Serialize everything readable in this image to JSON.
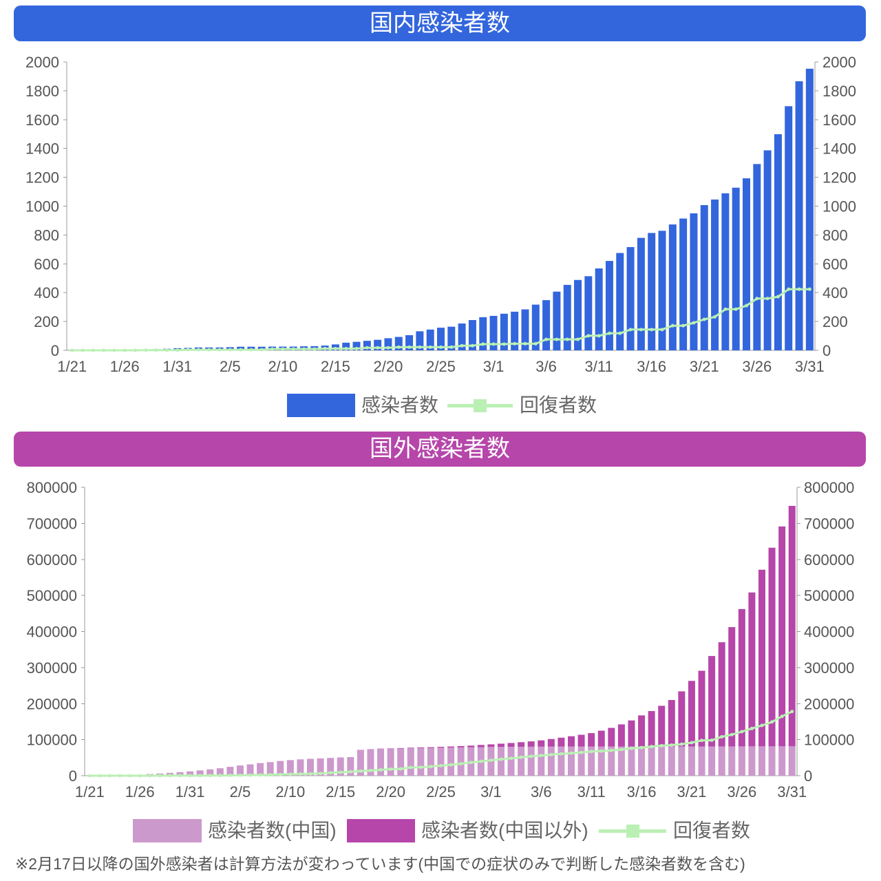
{
  "note": "※2月17日以降の国外感染者は計算方法が変わっています(中国での症状のみで判断した感染者数を含む)",
  "chart_data": [
    {
      "type": "bar",
      "title": "国内感染者数",
      "header_color": "#3366dd",
      "categories": [
        "1/21",
        "1/22",
        "1/23",
        "1/24",
        "1/25",
        "1/26",
        "1/27",
        "1/28",
        "1/29",
        "1/30",
        "1/31",
        "2/1",
        "2/2",
        "2/3",
        "2/4",
        "2/5",
        "2/6",
        "2/7",
        "2/8",
        "2/9",
        "2/10",
        "2/11",
        "2/12",
        "2/13",
        "2/14",
        "2/15",
        "2/16",
        "2/17",
        "2/18",
        "2/19",
        "2/20",
        "2/21",
        "2/22",
        "2/23",
        "2/24",
        "2/25",
        "2/26",
        "2/27",
        "2/28",
        "2/29",
        "3/1",
        "3/2",
        "3/3",
        "3/4",
        "3/5",
        "3/6",
        "3/7",
        "3/8",
        "3/9",
        "3/10",
        "3/11",
        "3/12",
        "3/13",
        "3/14",
        "3/15",
        "3/16",
        "3/17",
        "3/18",
        "3/19",
        "3/20",
        "3/21",
        "3/22",
        "3/23",
        "3/24",
        "3/25",
        "3/26",
        "3/27",
        "3/28",
        "3/29",
        "3/30",
        "3/31"
      ],
      "ylim": [
        0,
        2000
      ],
      "y_ticks": [
        0,
        200,
        400,
        600,
        800,
        1000,
        1200,
        1400,
        1600,
        1800,
        2000
      ],
      "mirrored_right_axis": true,
      "grid": false,
      "legend_position": "bottom",
      "series": [
        {
          "name": "感染者数",
          "type": "bar",
          "color": "#3366dd",
          "values": [
            1,
            1,
            1,
            2,
            3,
            4,
            4,
            7,
            8,
            11,
            15,
            17,
            20,
            20,
            20,
            22,
            25,
            25,
            25,
            26,
            26,
            26,
            28,
            29,
            33,
            41,
            53,
            59,
            66,
            73,
            84,
            93,
            105,
            132,
            144,
            157,
            164,
            186,
            210,
            230,
            239,
            254,
            268,
            284,
            317,
            348,
            407,
            454,
            488,
            514,
            568,
            620,
            675,
            716,
            780,
            814,
            829,
            873,
            914,
            950,
            1007,
            1046,
            1089,
            1128,
            1193,
            1292,
            1387,
            1499,
            1693,
            1866,
            1953
          ]
        },
        {
          "name": "回復者数",
          "type": "line",
          "color": "#bbf0b4",
          "values": [
            0,
            0,
            0,
            0,
            0,
            0,
            0,
            1,
            1,
            1,
            1,
            4,
            4,
            4,
            4,
            4,
            4,
            4,
            4,
            9,
            9,
            9,
            9,
            9,
            12,
            12,
            12,
            12,
            18,
            18,
            18,
            22,
            22,
            22,
            22,
            22,
            22,
            32,
            32,
            43,
            43,
            43,
            46,
            46,
            46,
            76,
            76,
            76,
            76,
            101,
            101,
            118,
            118,
            144,
            144,
            144,
            144,
            171,
            171,
            191,
            215,
            232,
            285,
            285,
            310,
            359,
            359,
            372,
            424,
            424,
            424
          ]
        }
      ]
    },
    {
      "type": "bar",
      "title": "国外感染者数",
      "header_color": "#b646aa",
      "categories": [
        "1/21",
        "1/22",
        "1/23",
        "1/24",
        "1/25",
        "1/26",
        "1/27",
        "1/28",
        "1/29",
        "1/30",
        "1/31",
        "2/1",
        "2/2",
        "2/3",
        "2/4",
        "2/5",
        "2/6",
        "2/7",
        "2/8",
        "2/9",
        "2/10",
        "2/11",
        "2/12",
        "2/13",
        "2/14",
        "2/15",
        "2/16",
        "2/17",
        "2/18",
        "2/19",
        "2/20",
        "2/21",
        "2/22",
        "2/23",
        "2/24",
        "2/25",
        "2/26",
        "2/27",
        "2/28",
        "2/29",
        "3/1",
        "3/2",
        "3/3",
        "3/4",
        "3/5",
        "3/6",
        "3/7",
        "3/8",
        "3/9",
        "3/10",
        "3/11",
        "3/12",
        "3/13",
        "3/14",
        "3/15",
        "3/16",
        "3/17",
        "3/18",
        "3/19",
        "3/20",
        "3/21",
        "3/22",
        "3/23",
        "3/24",
        "3/25",
        "3/26",
        "3/27",
        "3/28",
        "3/29",
        "3/30",
        "3/31"
      ],
      "ylim": [
        0,
        800000
      ],
      "y_ticks": [
        0,
        100000,
        200000,
        300000,
        400000,
        500000,
        600000,
        700000,
        800000
      ],
      "mirrored_right_axis": true,
      "grid": false,
      "legend_position": "bottom",
      "series": [
        {
          "name": "感染者数(中国)",
          "type": "bar",
          "stacked": true,
          "color": "#cc99cc",
          "values": [
            440,
            571,
            830,
            1287,
            1975,
            2744,
            4515,
            5974,
            7711,
            9692,
            11791,
            14380,
            17205,
            20438,
            24324,
            28018,
            31161,
            34546,
            37198,
            40171,
            42638,
            44653,
            46000,
            47300,
            48500,
            49600,
            50500,
            70548,
            72436,
            74185,
            74576,
            75465,
            76288,
            76936,
            77150,
            77658,
            78064,
            78497,
            78824,
            79251,
            79824,
            80026,
            80151,
            80270,
            80409,
            80552,
            80651,
            80695,
            80735,
            80754,
            80778,
            80793,
            80813,
            80824,
            80844,
            80860,
            80881,
            80894,
            80928,
            80967,
            81008,
            81054,
            81093,
            81171,
            81218,
            81285,
            81340,
            81394,
            81439,
            81470,
            81518
          ]
        },
        {
          "name": "感染者数(中国以外)",
          "type": "bar",
          "stacked": true,
          "color": "#b646aa",
          "values": [
            4,
            7,
            14,
            25,
            40,
            57,
            64,
            87,
            105,
            118,
            153,
            173,
            183,
            188,
            212,
            227,
            265,
            317,
            343,
            361,
            457,
            476,
            523,
            538,
            547,
            639,
            691,
            749,
            822,
            895,
            1076,
            1200,
            1402,
            1769,
            2069,
            2459,
            2918,
            3664,
            4691,
            6009,
            7169,
            8774,
            10566,
            12668,
            14768,
            17481,
            21110,
            24747,
            28674,
            32778,
            37371,
            44067,
            51767,
            61518,
            72469,
            86434,
            98400,
            113000,
            129000,
            153000,
            182000,
            210000,
            251000,
            289000,
            331000,
            381000,
            427000,
            490000,
            551000,
            610000,
            667000
          ]
        },
        {
          "name": "回復者数",
          "type": "line",
          "color": "#bbf0b4",
          "values": [
            28,
            28,
            30,
            36,
            39,
            52,
            61,
            107,
            126,
            143,
            222,
            284,
            472,
            623,
            852,
            1124,
            1487,
            2011,
            2616,
            3244,
            3946,
            4683,
            5150,
            6295,
            8058,
            9395,
            10865,
            12583,
            14352,
            16121,
            18177,
            18890,
            22886,
            23394,
            25227,
            27905,
            30384,
            33277,
            36711,
            39782,
            42716,
            45602,
            48228,
            51170,
            53796,
            55865,
            58358,
            60694,
            62494,
            64404,
            67003,
            68324,
            70251,
            72624,
            76034,
            78088,
            80840,
            83312,
            84975,
            87420,
            91692,
            97899,
            98351,
            107991,
            113787,
            122150,
            130915,
            139415,
            149082,
            164566,
            178034
          ]
        }
      ]
    }
  ]
}
